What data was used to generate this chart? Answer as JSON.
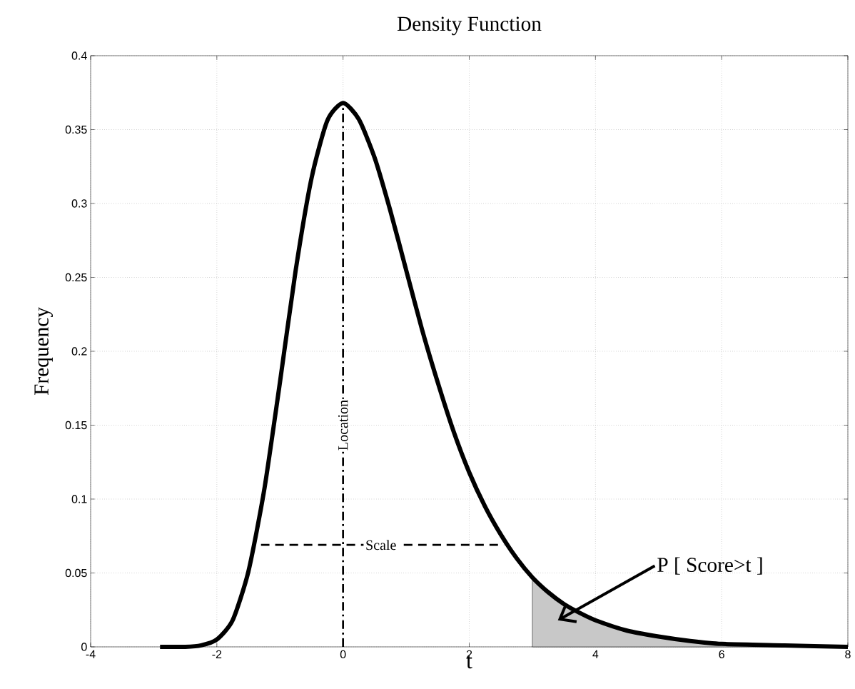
{
  "chart_data": {
    "type": "line",
    "title": "Density Function",
    "xlabel": "t",
    "ylabel": "Frequency",
    "xlim": [
      -4,
      8
    ],
    "ylim": [
      0,
      0.4
    ],
    "xticks": [
      -4,
      -2,
      0,
      2,
      4,
      6,
      8
    ],
    "yticks": [
      0,
      0.05,
      0.1,
      0.15,
      0.2,
      0.25,
      0.3,
      0.35,
      0.4
    ],
    "grid": true,
    "marker": "none",
    "series": [
      {
        "type": "area",
        "color": "#c8c8c8",
        "x": [
          3,
          3.25,
          3.5,
          3.75,
          4,
          4.5,
          5,
          5.5,
          6,
          7,
          8
        ],
        "values": [
          0.047,
          0.037,
          0.029,
          0.023,
          0.018,
          0.011,
          0.007,
          0.004,
          0.002,
          0.001,
          0.0
        ]
      },
      {
        "color": "#000000",
        "line_style": "solid",
        "x": [
          -2.9,
          -2.5,
          -2.25,
          -2,
          -1.75,
          -1.5,
          -1.25,
          -1,
          -0.75,
          -0.5,
          -0.25,
          0,
          0.25,
          0.5,
          0.75,
          1,
          1.25,
          1.5,
          1.75,
          2,
          2.25,
          2.5,
          2.75,
          3,
          3.25,
          3.5,
          3.75,
          4,
          4.5,
          5,
          5.5,
          6,
          7,
          8
        ],
        "values": [
          0.0,
          0.0,
          0.001,
          0.005,
          0.018,
          0.051,
          0.106,
          0.179,
          0.255,
          0.317,
          0.356,
          0.368,
          0.357,
          0.331,
          0.295,
          0.255,
          0.215,
          0.179,
          0.146,
          0.118,
          0.095,
          0.076,
          0.06,
          0.047,
          0.037,
          0.029,
          0.023,
          0.018,
          0.011,
          0.007,
          0.004,
          0.002,
          0.001,
          0.0
        ]
      },
      {
        "type": "line",
        "color": "#000000",
        "line_style": "dashed",
        "x": [
          -1.3,
          2.55
        ],
        "values": [
          0.069,
          0.069
        ]
      }
    ],
    "ref_lines": [
      {
        "axis": "x",
        "value": 0,
        "label": "Location",
        "line_style": "dashdot",
        "color": "#000000"
      }
    ],
    "annotations": [
      {
        "text": "Scale",
        "x": 0.6,
        "y": 0.069
      },
      "P [ Score>t ]"
    ]
  }
}
